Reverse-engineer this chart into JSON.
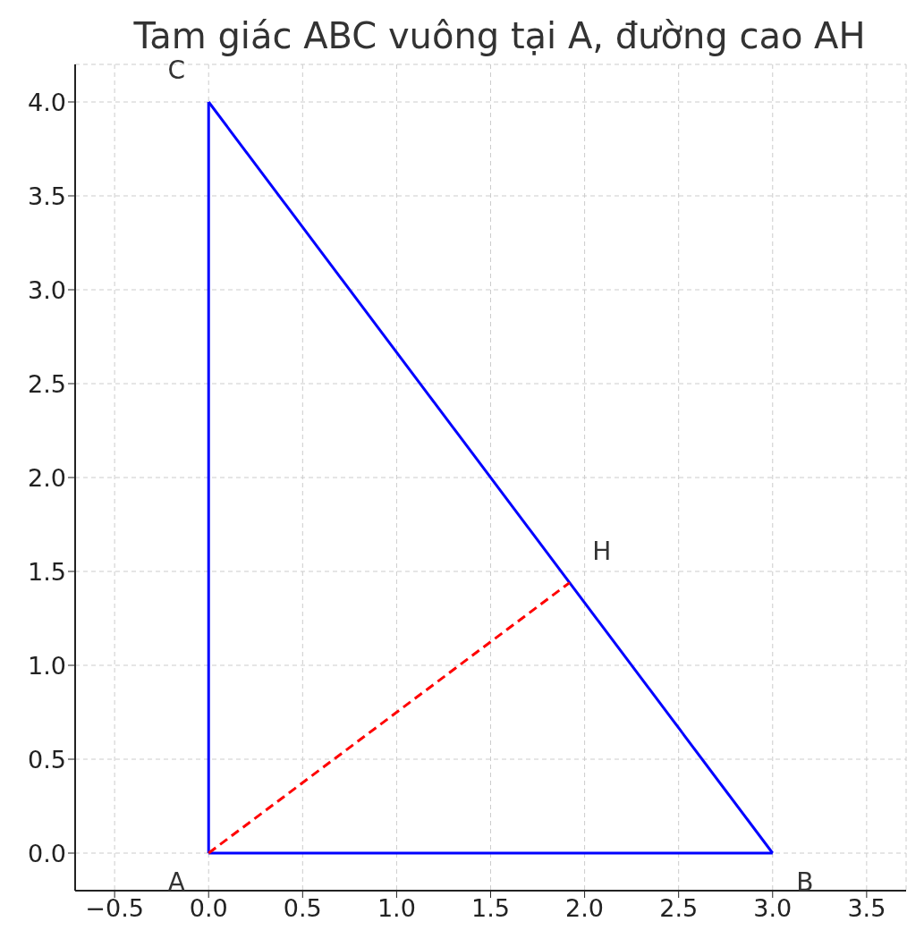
{
  "chart_data": {
    "type": "line",
    "title": "Tam giác ABC vuông tại A, đường cao AH",
    "series": [
      {
        "x": [
          0,
          3
        ],
        "values": [
          0,
          0
        ],
        "color": "#0000ff",
        "line_style": "solid"
      },
      {
        "x": [
          0,
          3
        ],
        "values": [
          4,
          0
        ],
        "color": "#0000ff",
        "line_style": "solid"
      },
      {
        "x": [
          0,
          0
        ],
        "values": [
          0,
          4
        ],
        "color": "#0000ff",
        "line_style": "solid"
      },
      {
        "x": [
          0,
          1.92
        ],
        "values": [
          0,
          1.44
        ],
        "color": "#ff0000",
        "line_style": "dashed"
      }
    ],
    "xlim": [
      -0.71,
      3.71
    ],
    "xticks": [
      {
        "value": -0.5,
        "label": "−0.5"
      },
      {
        "value": 0,
        "label": "0.0"
      },
      {
        "value": 0.5,
        "label": "0.5"
      },
      {
        "value": 1,
        "label": "1.0"
      },
      {
        "value": 1.5,
        "label": "1.5"
      },
      {
        "value": 2,
        "label": "2.0"
      },
      {
        "value": 2.5,
        "label": "2.5"
      },
      {
        "value": 3,
        "label": "3.0"
      },
      {
        "value": 3.5,
        "label": "3.5"
      }
    ],
    "ylim": [
      -0.2,
      4.2
    ],
    "yticks": [
      {
        "value": 0,
        "label": "0.0"
      },
      {
        "value": 0.5,
        "label": "0.5"
      },
      {
        "value": 1,
        "label": "1.0"
      },
      {
        "value": 1.5,
        "label": "1.5"
      },
      {
        "value": 2,
        "label": "2.0"
      },
      {
        "value": 2.5,
        "label": "2.5"
      },
      {
        "value": 3,
        "label": "3.0"
      },
      {
        "value": 3.5,
        "label": "3.5"
      },
      {
        "value": 4,
        "label": "4.0"
      }
    ],
    "annotations": [
      {
        "text": "A",
        "x": 0,
        "y": 0
      },
      {
        "text": "B",
        "x": 3,
        "y": 0
      },
      {
        "text": "C",
        "x": 0,
        "y": 4
      },
      {
        "text": "H",
        "x": 1.92,
        "y": 1.44
      }
    ],
    "grid": true,
    "marker": "none"
  }
}
